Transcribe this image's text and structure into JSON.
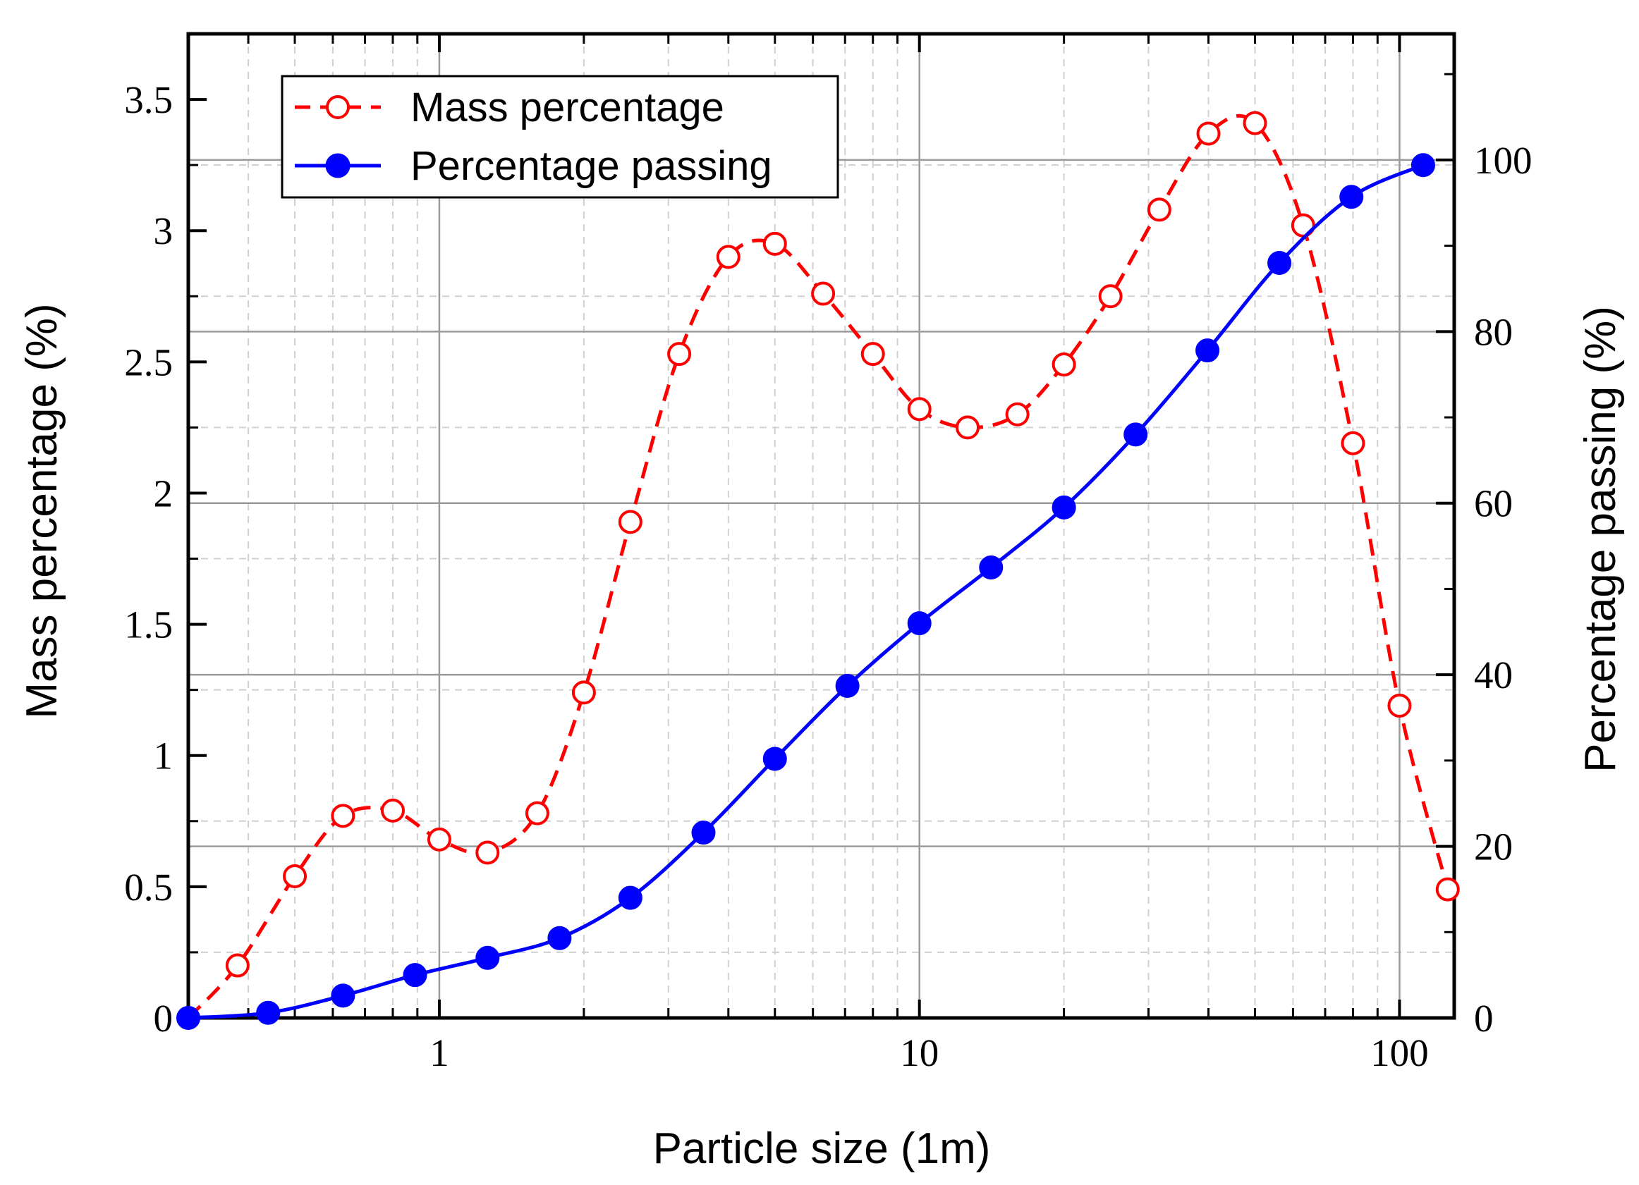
{
  "chart_data": {
    "type": "line",
    "x_scale": "log",
    "xlabel": "Particle size (1m)",
    "ylabel_left": "Mass percentage (%)",
    "ylabel_right": "Percentage passing (%)",
    "xlim": [
      0.3,
      130
    ],
    "ylim_left": [
      0,
      3.75
    ],
    "ylim_right": [
      0,
      114.7
    ],
    "x_ticks": [
      {
        "value": 1,
        "label": "1"
      },
      {
        "value": 10,
        "label": "10"
      },
      {
        "value": 100,
        "label": "100"
      }
    ],
    "left_ticks": [
      {
        "value": 0,
        "label": "0"
      },
      {
        "value": 0.5,
        "label": "0.5"
      },
      {
        "value": 1,
        "label": "1"
      },
      {
        "value": 1.5,
        "label": "1.5"
      },
      {
        "value": 2,
        "label": "2"
      },
      {
        "value": 2.5,
        "label": "2.5"
      },
      {
        "value": 3,
        "label": "3"
      },
      {
        "value": 3.5,
        "label": "3.5"
      }
    ],
    "right_ticks": [
      {
        "value": 0,
        "label": "0"
      },
      {
        "value": 20,
        "label": "20"
      },
      {
        "value": 40,
        "label": "40"
      },
      {
        "value": 60,
        "label": "60"
      },
      {
        "value": 80,
        "label": "80"
      },
      {
        "value": 100,
        "label": "100"
      }
    ],
    "grid": true,
    "legend_position": "top-left",
    "series": [
      {
        "name": "Mass percentage",
        "axis": "left",
        "color": "#ff0000",
        "line_style": "dashed",
        "marker": "open-circle",
        "x": [
          0.3,
          0.38,
          0.5,
          0.63,
          0.8,
          1.0,
          1.26,
          1.6,
          2.0,
          2.5,
          3.16,
          4.0,
          5.0,
          6.3,
          8.0,
          10.0,
          12.6,
          16.0,
          20.0,
          25.0,
          31.6,
          40.0,
          50.0,
          63.0,
          80.0,
          100.0,
          126.0
        ],
        "values": [
          0.0,
          0.2,
          0.54,
          0.77,
          0.79,
          0.68,
          0.63,
          0.78,
          1.24,
          1.89,
          2.53,
          2.9,
          2.95,
          2.76,
          2.53,
          2.32,
          2.25,
          2.3,
          2.49,
          2.75,
          3.08,
          3.37,
          3.41,
          3.02,
          2.19,
          1.19,
          0.49
        ]
      },
      {
        "name": "Percentage passing",
        "axis": "right",
        "color": "#0000ff",
        "line_style": "solid",
        "marker": "filled-circle",
        "x": [
          0.3,
          0.44,
          0.63,
          0.89,
          1.26,
          1.78,
          2.5,
          3.55,
          5.0,
          7.08,
          10.0,
          14.1,
          20.0,
          28.2,
          39.8,
          56.2,
          79.4,
          112.0
        ],
        "values": [
          0.0,
          0.6,
          2.6,
          5.0,
          7.0,
          9.3,
          14.0,
          21.6,
          30.2,
          38.7,
          46.0,
          52.5,
          59.5,
          68.0,
          77.8,
          88.0,
          95.7,
          99.4
        ]
      }
    ]
  }
}
